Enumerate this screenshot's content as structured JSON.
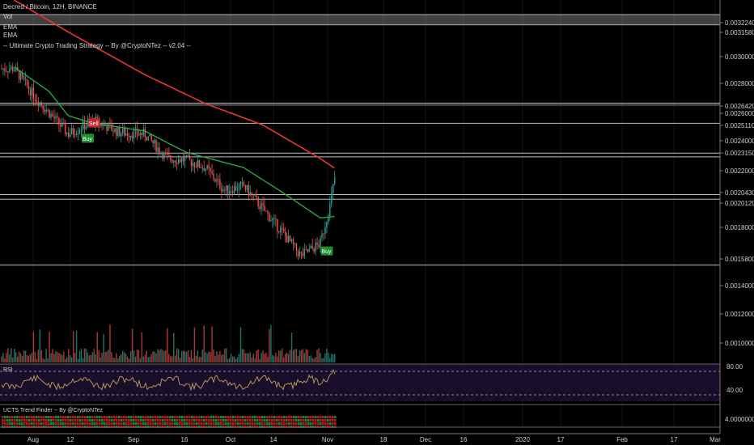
{
  "header": {
    "title": "Decred / Bitcoin, 12H, BINANCE",
    "vol_label": "Vol",
    "ema1_label": "EMA",
    "ema2_label": "EMA",
    "strategy_label": "-- Ultimate Crypto Trading Strategy -- By @CryptoNTez -- v2.04 --"
  },
  "indicators": {
    "rsi_label": "RSI",
    "ucts_label": "UCTS Trend Finder -- By @CryptoNTez"
  },
  "colors": {
    "up": "#26a69a",
    "down": "#ef5350",
    "ema_long": "#e53935",
    "ema_short": "#27a844",
    "signal_buy": "#1b8f2d",
    "signal_sell": "#c62828",
    "rsi_line": "#c8a060",
    "hline": "#bdbdbd"
  },
  "chart_data": {
    "type": "candlestick",
    "price_ticks": [
      "0.00322400",
      "0.00315800",
      "0.00300000",
      "0.00280000",
      "0.00264200",
      "0.00260000",
      "0.00251100",
      "0.00240000",
      "0.00231500",
      "0.00220000",
      "0.00204300",
      "0.00201200",
      "0.00180000",
      "0.00158005",
      "0.00140000",
      "0.00120000",
      "0.00100000"
    ],
    "rsi_ticks": [
      "80.00",
      "40.00"
    ],
    "ucts_ticks": [
      "4.00000000"
    ],
    "x_ticks": [
      "Aug",
      "12",
      "Sep",
      "16",
      "Oct",
      "14",
      "Nov",
      "18",
      "Dec",
      "16",
      "2020",
      "17",
      "Feb",
      "17",
      "Mar"
    ],
    "ylim": [
      0.00093,
      0.00332
    ],
    "horizontal_levels": [
      0.003224,
      0.003158,
      0.002642,
      0.002511,
      0.002315,
      0.00229,
      0.002043,
      0.002012,
      0.00158005
    ],
    "series_points": [
      {
        "name": "price",
        "x": [
          "Jul 26",
          "Aug 1",
          "Aug 6",
          "Aug 12",
          "Aug 20",
          "Aug 28",
          "Sep 5",
          "Sep 12",
          "Sep 18",
          "Sep 24",
          "Sep 30",
          "Oct 6",
          "Oct 12",
          "Oct 18",
          "Oct 24",
          "Oct 30",
          "Nov 2",
          "Nov 4"
        ],
        "values": [
          0.00287,
          0.0027,
          0.00258,
          0.00244,
          0.00253,
          0.00245,
          0.00244,
          0.00228,
          0.00227,
          0.00222,
          0.00207,
          0.0021,
          0.00195,
          0.0018,
          0.00164,
          0.00172,
          0.00196,
          0.0022
        ]
      },
      {
        "name": "ema_long",
        "x": [
          "Jul 26",
          "Aug 12",
          "Sep 5",
          "Sep 24",
          "Oct 12",
          "Oct 30",
          "Nov 4"
        ],
        "values": [
          0.00332,
          0.00311,
          0.00283,
          0.00264,
          0.0025,
          0.00228,
          0.00221
        ]
      },
      {
        "name": "ema_short",
        "x": [
          "Jul 26",
          "Aug 6",
          "Aug 12",
          "Aug 20",
          "Sep 5",
          "Sep 18",
          "Oct 6",
          "Oct 18",
          "Oct 30",
          "Nov 4"
        ],
        "values": [
          0.00288,
          0.00272,
          0.00256,
          0.00251,
          0.00246,
          0.00232,
          0.00222,
          0.00206,
          0.00189,
          0.0019
        ]
      }
    ],
    "signals": [
      {
        "label": "Sell",
        "x": "Aug 20",
        "price": 0.00251
      },
      {
        "label": "Buy",
        "x": "Aug 18",
        "price": 0.00241
      },
      {
        "label": "Buy",
        "x": "Nov 1",
        "price": 0.00167
      }
    ]
  }
}
